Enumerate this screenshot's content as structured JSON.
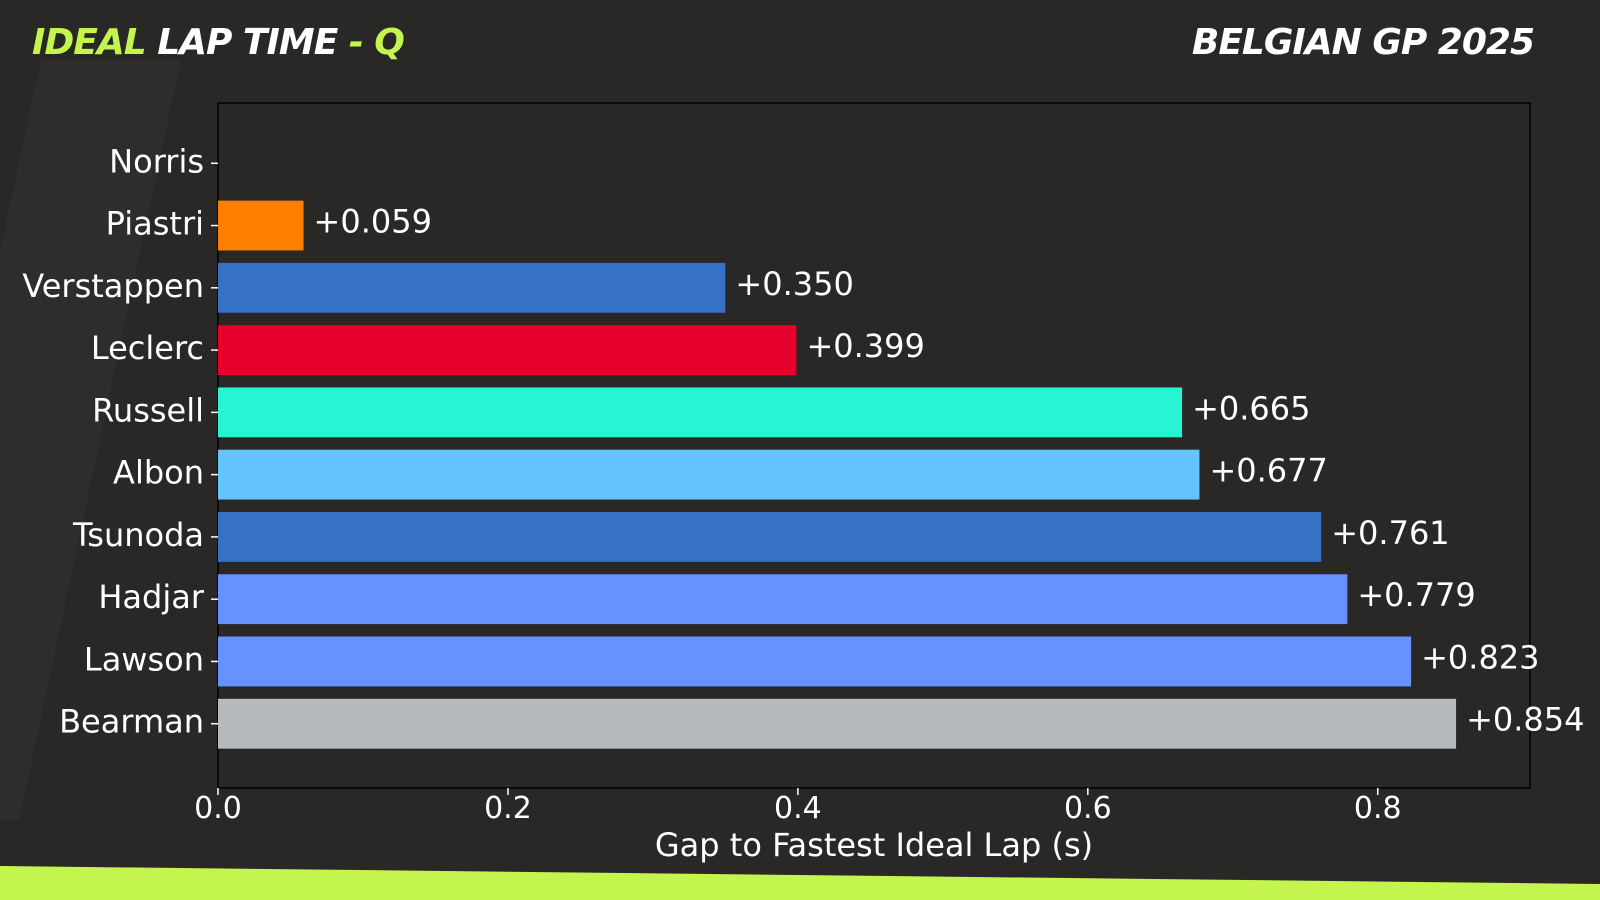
{
  "header": {
    "title_accent": "IDEAL",
    "title_main": " LAP TIME ",
    "title_suffix": "- Q",
    "event": "BELGIAN GP 2025"
  },
  "colors": {
    "background": "#2a2727",
    "accent": "#c4f54e",
    "text": "#ffffff"
  },
  "chart_data": {
    "type": "bar",
    "orientation": "horizontal",
    "xlabel": "Gap to Fastest Ideal Lap (s)",
    "ylabel": "",
    "xlim": [
      0,
      0.905
    ],
    "xticks": [
      "0.0",
      "0.2",
      "0.4",
      "0.6",
      "0.8"
    ],
    "xtick_values": [
      0,
      0.2,
      0.4,
      0.6,
      0.8
    ],
    "grid": false,
    "categories": [
      "Norris",
      "Piastri",
      "Verstappen",
      "Leclerc",
      "Russell",
      "Albon",
      "Tsunoda",
      "Hadjar",
      "Lawson",
      "Bearman"
    ],
    "values": [
      0,
      0.059,
      0.35,
      0.399,
      0.665,
      0.677,
      0.761,
      0.779,
      0.823,
      0.854
    ],
    "labels": [
      "",
      "+0.059",
      "+0.350",
      "+0.399",
      "+0.665",
      "+0.677",
      "+0.761",
      "+0.779",
      "+0.823",
      "+0.854"
    ],
    "bar_colors": [
      "#ff8000",
      "#ff8000",
      "#3671c6",
      "#e8002d",
      "#27f4d2",
      "#64c4ff",
      "#3671c6",
      "#6692ff",
      "#6692ff",
      "#b6babd"
    ]
  }
}
